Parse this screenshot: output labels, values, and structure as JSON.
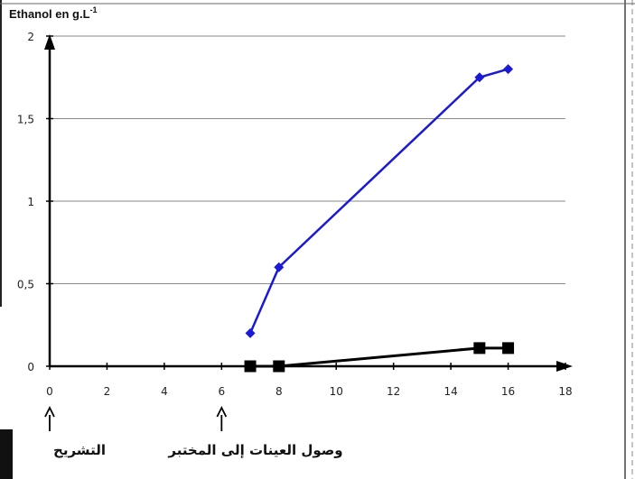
{
  "chart_data": {
    "type": "line",
    "ylabel_main": "Ethanol en g.L",
    "ylabel_sup": "-1",
    "xlabel": "",
    "xlim": [
      0,
      18
    ],
    "ylim": [
      0,
      2
    ],
    "x_ticks": [
      "0",
      "2",
      "4",
      "6",
      "8",
      "10",
      "12",
      "14",
      "16",
      "18"
    ],
    "y_ticks": [
      "0",
      "0,5",
      "1",
      "1,5",
      "2"
    ],
    "y_tick_values": [
      0,
      0.5,
      1,
      1.5,
      2
    ],
    "grid": true,
    "series": [
      {
        "color": "#1a1ad6",
        "marker": "diamond",
        "x": [
          7,
          8,
          15,
          16
        ],
        "y": [
          0.2,
          0.6,
          1.75,
          1.8
        ]
      },
      {
        "color": "#000000",
        "marker": "square",
        "x": [
          7,
          8,
          15,
          16
        ],
        "y": [
          0.0,
          0.0,
          0.11,
          0.11
        ]
      }
    ],
    "annotations": [
      {
        "x": 0,
        "text": "التشريح"
      },
      {
        "x": 6,
        "text": "وصول العينات إلى المختبر"
      }
    ]
  }
}
